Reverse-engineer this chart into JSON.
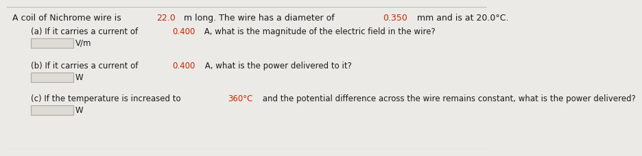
{
  "bg_color": "#eceae6",
  "text_color": "#1a1a1a",
  "highlight_color": "#cc2200",
  "font_size_main": 9.0,
  "font_size_parts": 8.5,
  "title_segments": [
    [
      "A coil of Nichrome wire is ",
      "#1a1a1a"
    ],
    [
      "22.0",
      "#cc2200"
    ],
    [
      " m long. The wire has a diameter of ",
      "#1a1a1a"
    ],
    [
      "0.350",
      "#cc2200"
    ],
    [
      " mm and is at 20.0°C.",
      "#1a1a1a"
    ]
  ],
  "part_a_segments": [
    [
      "(a) If it carries a current of ",
      "#1a1a1a"
    ],
    [
      "0.400",
      "#cc2200"
    ],
    [
      " A, what is the magnitude of the electric field in the wire?",
      "#1a1a1a"
    ]
  ],
  "part_a_unit": "V/m",
  "part_b_segments": [
    [
      "(b) If it carries a current of ",
      "#1a1a1a"
    ],
    [
      "0.400",
      "#cc2200"
    ],
    [
      " A, what is the power delivered to it?",
      "#1a1a1a"
    ]
  ],
  "part_b_unit": "W",
  "part_c_segments": [
    [
      "(c) If the temperature is increased to ",
      "#1a1a1a"
    ],
    [
      "360°C",
      "#cc2200"
    ],
    [
      " and the potential difference across the wire remains constant, what is the power delivered?",
      "#1a1a1a"
    ]
  ],
  "part_c_unit": "W",
  "box_facecolor": "#dedad4",
  "box_edgecolor": "#aaaaaa",
  "border_color": "#bbbbbb"
}
